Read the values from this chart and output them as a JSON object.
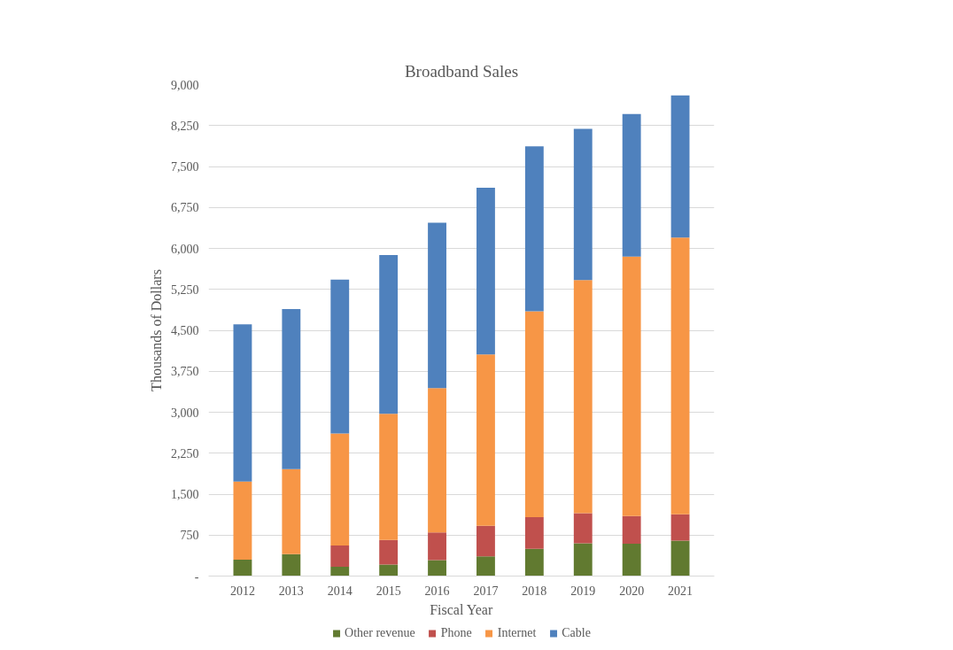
{
  "chart_data": {
    "type": "bar",
    "stacked": true,
    "title": "Broadband Sales",
    "xlabel": "Fiscal Year",
    "ylabel": "Thousands of Dollars",
    "categories": [
      "2012",
      "2013",
      "2014",
      "2015",
      "2016",
      "2017",
      "2018",
      "2019",
      "2020",
      "2021"
    ],
    "series": [
      {
        "name": "Other revenue",
        "color": "#617a30",
        "values": [
          300,
          400,
          170,
          210,
          290,
          360,
          500,
          600,
          590,
          650
        ]
      },
      {
        "name": "Phone",
        "color": "#c0504d",
        "values": [
          0,
          0,
          390,
          450,
          510,
          560,
          580,
          550,
          510,
          480
        ]
      },
      {
        "name": "Internet",
        "color": "#f79646",
        "values": [
          1430,
          1560,
          2050,
          2310,
          2640,
          3140,
          3770,
          4270,
          4750,
          5070
        ]
      },
      {
        "name": "Cable",
        "color": "#4f81bd",
        "values": [
          2880,
          2930,
          2820,
          2910,
          3030,
          3050,
          3020,
          2770,
          2610,
          2600
        ]
      }
    ],
    "ylim": [
      0,
      9000
    ],
    "yticks": [
      {
        "value": 0,
        "label": "-"
      },
      {
        "value": 750,
        "label": "750"
      },
      {
        "value": 1500,
        "label": "1,500"
      },
      {
        "value": 2250,
        "label": "2,250"
      },
      {
        "value": 3000,
        "label": "3,000"
      },
      {
        "value": 3750,
        "label": "3,750"
      },
      {
        "value": 4500,
        "label": "4,500"
      },
      {
        "value": 5250,
        "label": "5,250"
      },
      {
        "value": 6000,
        "label": "6,000"
      },
      {
        "value": 6750,
        "label": "6,750"
      },
      {
        "value": 7500,
        "label": "7,500"
      },
      {
        "value": 8250,
        "label": "8,250"
      },
      {
        "value": 9000,
        "label": "9,000"
      }
    ],
    "grid": "y",
    "legend": "bottom"
  }
}
